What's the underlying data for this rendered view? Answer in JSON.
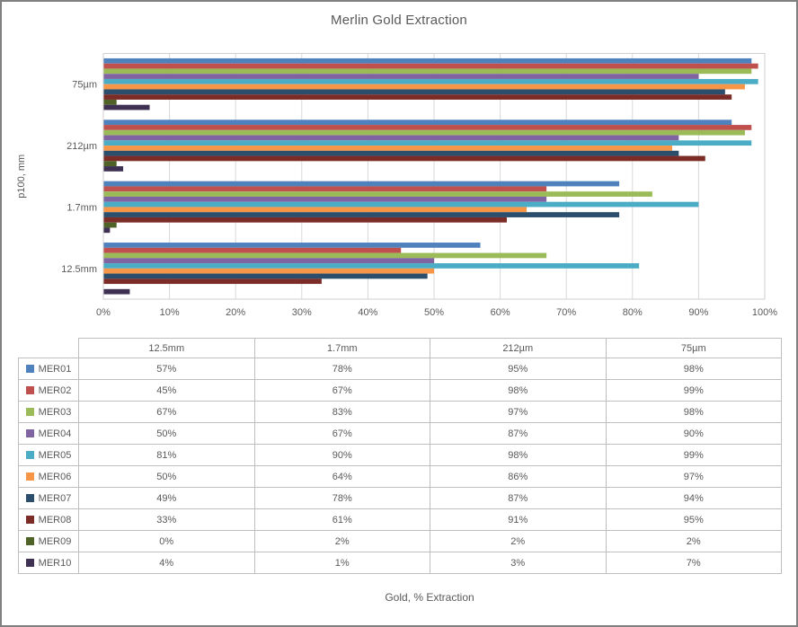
{
  "chart_data": {
    "type": "bar",
    "orientation": "horizontal",
    "title": "Merlin Gold Extraction",
    "xlabel": "Gold, % Extraction",
    "ylabel": "p100, mm",
    "xlim": [
      0,
      100
    ],
    "grid": "vertical",
    "x_ticks": [
      "0%",
      "10%",
      "20%",
      "30%",
      "40%",
      "50%",
      "60%",
      "70%",
      "80%",
      "90%",
      "100%"
    ],
    "categories_top_to_bottom": [
      "75µm",
      "212µm",
      "1.7mm",
      "12.5mm"
    ],
    "value_order": [
      "12.5mm",
      "1.7mm",
      "212µm",
      "75µm"
    ],
    "series": [
      {
        "name": "MER01",
        "color": "#4f81bd",
        "values": [
          57,
          78,
          95,
          98
        ]
      },
      {
        "name": "MER02",
        "color": "#c0504d",
        "values": [
          45,
          67,
          98,
          99
        ]
      },
      {
        "name": "MER03",
        "color": "#9bbb59",
        "values": [
          67,
          83,
          97,
          98
        ]
      },
      {
        "name": "MER04",
        "color": "#8064a2",
        "values": [
          50,
          67,
          87,
          90
        ]
      },
      {
        "name": "MER05",
        "color": "#4bacc6",
        "values": [
          81,
          90,
          98,
          99
        ]
      },
      {
        "name": "MER06",
        "color": "#f79646",
        "values": [
          50,
          64,
          86,
          97
        ]
      },
      {
        "name": "MER07",
        "color": "#2b4e6d",
        "values": [
          49,
          78,
          87,
          94
        ]
      },
      {
        "name": "MER08",
        "color": "#7b2c27",
        "values": [
          33,
          61,
          91,
          95
        ]
      },
      {
        "name": "MER09",
        "color": "#4f6228",
        "values": [
          0,
          2,
          2,
          2
        ]
      },
      {
        "name": "MER10",
        "color": "#3f3151",
        "values": [
          4,
          1,
          3,
          7
        ]
      }
    ]
  },
  "table": {
    "columns": [
      "",
      "12.5mm",
      "1.7mm",
      "212µm",
      "75µm"
    ],
    "rows": [
      {
        "name": "MER01",
        "color": "#4f81bd",
        "cells": [
          "57%",
          "78%",
          "95%",
          "98%"
        ]
      },
      {
        "name": "MER02",
        "color": "#c0504d",
        "cells": [
          "45%",
          "67%",
          "98%",
          "99%"
        ]
      },
      {
        "name": "MER03",
        "color": "#9bbb59",
        "cells": [
          "67%",
          "83%",
          "97%",
          "98%"
        ]
      },
      {
        "name": "MER04",
        "color": "#8064a2",
        "cells": [
          "50%",
          "67%",
          "87%",
          "90%"
        ]
      },
      {
        "name": "MER05",
        "color": "#4bacc6",
        "cells": [
          "81%",
          "90%",
          "98%",
          "99%"
        ]
      },
      {
        "name": "MER06",
        "color": "#f79646",
        "cells": [
          "50%",
          "64%",
          "86%",
          "97%"
        ]
      },
      {
        "name": "MER07",
        "color": "#2b4e6d",
        "cells": [
          "49%",
          "78%",
          "87%",
          "94%"
        ]
      },
      {
        "name": "MER08",
        "color": "#7b2c27",
        "cells": [
          "33%",
          "61%",
          "91%",
          "95%"
        ]
      },
      {
        "name": "MER09",
        "color": "#4f6228",
        "cells": [
          "0%",
          "2%",
          "2%",
          "2%"
        ]
      },
      {
        "name": "MER10",
        "color": "#3f3151",
        "cells": [
          "4%",
          "1%",
          "3%",
          "7%"
        ]
      }
    ]
  },
  "footer": {
    "caption": "Gold, % Extraction"
  },
  "colors": {
    "text": "#595959",
    "gridline": "#d9d9d9",
    "plot_border": "#d0cece",
    "frame_border": "#808080"
  }
}
